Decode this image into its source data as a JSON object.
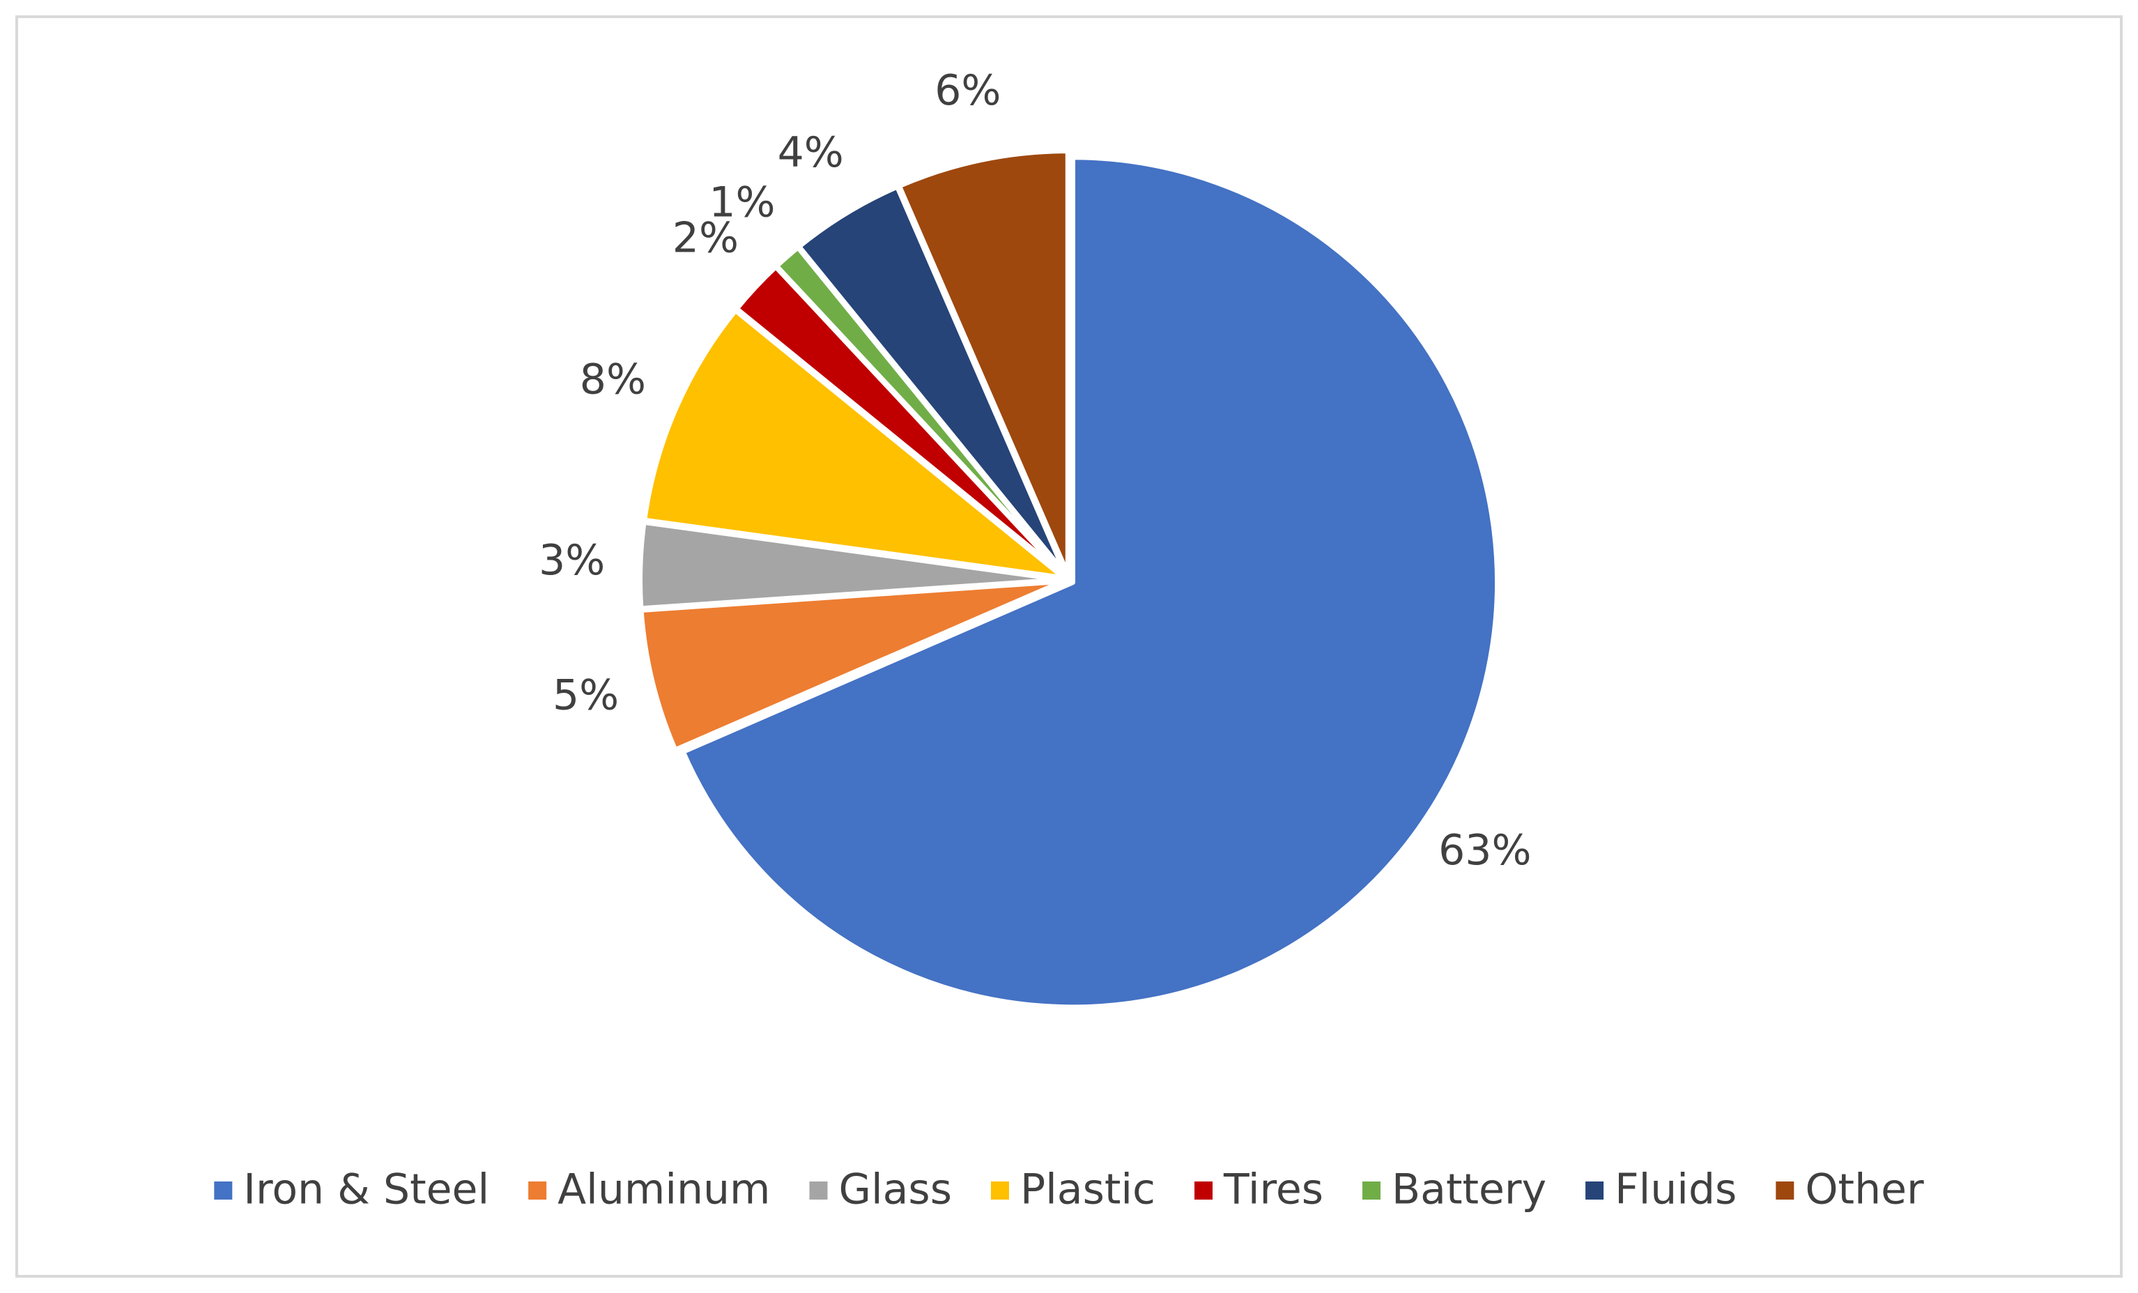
{
  "chart_data": {
    "type": "pie",
    "categories": [
      "Iron & Steel",
      "Aluminum",
      "Glass",
      "Plastic",
      "Tires",
      "Battery",
      "Fluids",
      "Other"
    ],
    "values": [
      63,
      5,
      3,
      8,
      2,
      1,
      4,
      6
    ],
    "value_labels": [
      "63%",
      "5%",
      "3%",
      "8%",
      "2%",
      "1%",
      "4%",
      "6%"
    ],
    "colors": [
      "#4472c4",
      "#ed7d31",
      "#a5a5a5",
      "#ffc000",
      "#c00000",
      "#70ad47",
      "#264478",
      "#9e480e"
    ],
    "legend": "bottom"
  }
}
